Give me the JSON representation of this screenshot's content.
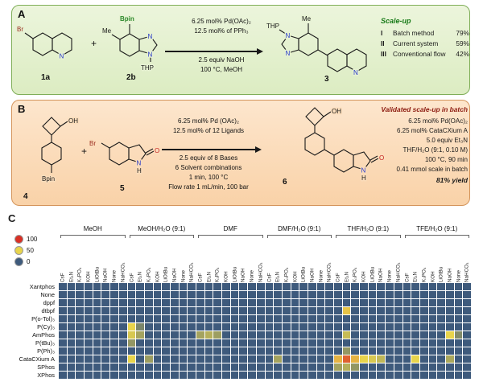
{
  "panels": {
    "a": "A",
    "b": "B",
    "c": "C"
  },
  "panelA": {
    "mol1a": {
      "br": "Br",
      "n": "N",
      "label": "1a"
    },
    "plus": "+",
    "mol2b": {
      "bpin": "Bpin",
      "me": "Me",
      "n1": "N",
      "n2": "N",
      "thp": "THP",
      "label": "2b"
    },
    "conditions_above": [
      "6.25 mol% Pd(OAc)₂",
      "12.5 mol% of PPh₃"
    ],
    "conditions_below": [
      "2.5 equiv NaOH",
      "100 °C, MeOH"
    ],
    "mol3": {
      "me": "Me",
      "thp": "THP",
      "n1": "N",
      "n2": "N",
      "nq": "N",
      "label": "3"
    },
    "scaleup": {
      "title": "Scale-up",
      "entries": [
        {
          "num": "I",
          "name": "Batch method",
          "value": "79%"
        },
        {
          "num": "II",
          "name": "Current system",
          "value": "59%"
        },
        {
          "num": "III",
          "name": "Conventional flow",
          "value": "42%"
        }
      ]
    }
  },
  "panelB": {
    "mol4": {
      "oh": "OH",
      "bpin": "Bpin",
      "label": "4"
    },
    "plus": "+",
    "mol5": {
      "br": "Br",
      "o": "O",
      "n": "N",
      "h": "H",
      "label": "5"
    },
    "conditions_above": [
      "6.25 mol% Pd (OAc)₂",
      "12.5 mol% of 12 Ligands"
    ],
    "conditions_below": [
      "2.5 equiv of 8 Bases",
      "6 Solvent combinations",
      "1 min, 100 °C",
      "Flow rate 1 mL/min, 100 bar"
    ],
    "mol6": {
      "oh": "OH",
      "o": "O",
      "n": "N",
      "h": "H",
      "label": "6"
    },
    "validated": {
      "title": "Validated scale-up in batch",
      "lines": [
        "6.25 mol% Pd(OAc)₂",
        "6.25 mol% CataCXium A",
        "5.0 equiv Et₃N",
        "THF/H₂O (9:1, 0.10 M)",
        "100 °C, 90 min",
        "0.41 mmol scale in batch"
      ],
      "yield": "81% yield"
    }
  },
  "chart_data": {
    "type": "heatmap",
    "legend": [
      {
        "label": "100",
        "color": "#d93025"
      },
      {
        "label": "50",
        "color": "#e8d44c"
      },
      {
        "label": "0",
        "color": "#3e5a7c"
      }
    ],
    "colorscale": {
      "0": "#3e5a7c",
      "50": "#e8d44c",
      "100": "#d93025"
    },
    "solvent_groups": [
      "MeOH",
      "MeOH/H₂O (9:1)",
      "DMF",
      "DMF/H₂O (9:1)",
      "THF/H₂O (9:1)",
      "TFE/H₂O (9:1)"
    ],
    "bases": [
      "CsF",
      "Et₃N",
      "K₃PO₄",
      "KOH",
      "LiOtBu",
      "NaOH",
      "None",
      "NaHCO₃"
    ],
    "ligands": [
      "Xantphos",
      "None",
      "dppf",
      "dtbpf",
      "P(o-Tol)₃",
      "P(Cy)₃",
      "AmPhos",
      "P(tBu)₃",
      "P(Ph)₃",
      "CataCXium A",
      "SPhos",
      "XPhos"
    ],
    "values": [
      [
        0,
        0,
        0,
        0,
        0,
        0,
        0,
        0,
        0,
        0,
        0,
        0,
        0,
        0,
        0,
        0,
        0,
        0,
        0,
        0,
        0,
        0,
        0,
        0,
        0,
        0,
        0,
        0,
        0,
        0,
        0,
        0,
        0,
        0,
        0,
        0,
        0,
        0,
        0,
        0,
        0,
        0,
        0,
        0,
        0,
        0,
        0,
        0
      ],
      [
        0,
        0,
        0,
        0,
        0,
        0,
        0,
        0,
        0,
        0,
        0,
        0,
        0,
        0,
        0,
        0,
        0,
        0,
        0,
        0,
        0,
        0,
        0,
        0,
        0,
        0,
        0,
        0,
        0,
        0,
        0,
        0,
        0,
        0,
        0,
        0,
        0,
        0,
        0,
        0,
        0,
        0,
        0,
        0,
        0,
        0,
        0,
        0
      ],
      [
        0,
        0,
        0,
        0,
        0,
        0,
        0,
        0,
        0,
        0,
        0,
        0,
        0,
        0,
        0,
        0,
        0,
        0,
        0,
        0,
        0,
        0,
        0,
        0,
        0,
        0,
        0,
        0,
        0,
        0,
        0,
        0,
        0,
        0,
        0,
        0,
        0,
        0,
        0,
        0,
        0,
        0,
        0,
        0,
        0,
        0,
        0,
        0
      ],
      [
        0,
        0,
        0,
        0,
        0,
        0,
        0,
        0,
        0,
        0,
        0,
        0,
        0,
        0,
        0,
        0,
        0,
        0,
        0,
        0,
        0,
        0,
        0,
        0,
        0,
        0,
        0,
        0,
        0,
        0,
        0,
        0,
        0,
        55,
        0,
        0,
        0,
        0,
        0,
        0,
        0,
        0,
        0,
        0,
        0,
        0,
        0,
        0
      ],
      [
        0,
        0,
        0,
        0,
        0,
        0,
        0,
        0,
        0,
        0,
        0,
        0,
        0,
        0,
        0,
        0,
        0,
        0,
        0,
        0,
        0,
        0,
        0,
        0,
        0,
        0,
        0,
        0,
        0,
        0,
        0,
        0,
        0,
        0,
        0,
        0,
        0,
        0,
        0,
        0,
        0,
        0,
        0,
        0,
        0,
        0,
        0,
        0
      ],
      [
        0,
        0,
        0,
        0,
        0,
        0,
        0,
        0,
        50,
        18,
        0,
        0,
        0,
        0,
        0,
        0,
        0,
        0,
        0,
        0,
        0,
        0,
        0,
        0,
        0,
        0,
        0,
        0,
        0,
        0,
        0,
        0,
        0,
        0,
        0,
        0,
        0,
        0,
        0,
        0,
        0,
        0,
        0,
        0,
        0,
        0,
        0,
        0
      ],
      [
        0,
        0,
        0,
        0,
        0,
        0,
        0,
        0,
        45,
        30,
        0,
        0,
        0,
        0,
        0,
        0,
        30,
        35,
        28,
        0,
        0,
        0,
        0,
        0,
        0,
        0,
        0,
        0,
        0,
        0,
        0,
        0,
        0,
        40,
        0,
        0,
        0,
        0,
        0,
        0,
        0,
        0,
        0,
        0,
        0,
        50,
        20,
        0
      ],
      [
        0,
        0,
        0,
        0,
        0,
        0,
        0,
        0,
        25,
        0,
        0,
        0,
        0,
        0,
        0,
        0,
        0,
        0,
        0,
        0,
        0,
        0,
        0,
        0,
        0,
        0,
        0,
        0,
        0,
        0,
        0,
        0,
        0,
        0,
        0,
        0,
        0,
        0,
        0,
        0,
        0,
        0,
        0,
        0,
        0,
        0,
        0,
        0
      ],
      [
        0,
        0,
        0,
        0,
        0,
        0,
        0,
        0,
        0,
        0,
        0,
        0,
        0,
        0,
        0,
        0,
        0,
        0,
        0,
        0,
        0,
        0,
        0,
        0,
        0,
        0,
        0,
        0,
        0,
        0,
        0,
        0,
        0,
        25,
        0,
        0,
        0,
        0,
        0,
        0,
        0,
        0,
        0,
        0,
        0,
        0,
        0,
        0
      ],
      [
        0,
        0,
        0,
        0,
        0,
        0,
        0,
        0,
        50,
        0,
        28,
        0,
        0,
        0,
        0,
        0,
        0,
        0,
        0,
        0,
        0,
        0,
        0,
        0,
        0,
        30,
        0,
        0,
        0,
        0,
        0,
        0,
        60,
        85,
        60,
        50,
        45,
        38,
        0,
        0,
        0,
        50,
        0,
        0,
        0,
        32,
        0,
        0
      ],
      [
        0,
        0,
        0,
        0,
        0,
        0,
        0,
        0,
        0,
        0,
        0,
        0,
        0,
        0,
        0,
        0,
        0,
        0,
        0,
        0,
        0,
        0,
        0,
        0,
        0,
        0,
        0,
        0,
        0,
        0,
        0,
        0,
        30,
        35,
        25,
        0,
        0,
        0,
        0,
        0,
        0,
        0,
        0,
        0,
        0,
        0,
        0,
        0
      ],
      [
        0,
        0,
        0,
        0,
        0,
        0,
        0,
        0,
        0,
        0,
        0,
        0,
        0,
        0,
        0,
        0,
        0,
        0,
        0,
        0,
        0,
        0,
        0,
        0,
        0,
        0,
        0,
        0,
        0,
        0,
        0,
        0,
        0,
        0,
        0,
        0,
        0,
        0,
        0,
        0,
        0,
        0,
        0,
        0,
        0,
        0,
        0,
        0
      ]
    ]
  }
}
